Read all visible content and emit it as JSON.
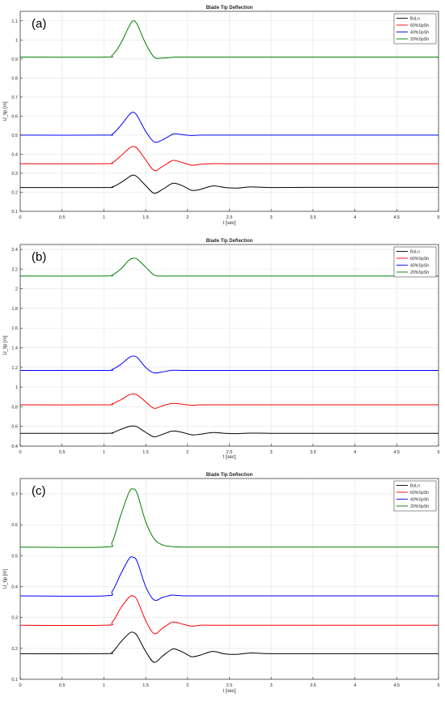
{
  "figure": {
    "panels": [
      {
        "panel_label": "(a)",
        "chart_data": {
          "type": "line",
          "title": "Blade Tip Deflection",
          "xlabel": "t [sec]",
          "ylabel": "U_tip [m]",
          "xlim": [
            0,
            5
          ],
          "ylim": [
            0.1,
            1.15
          ],
          "x_ticks": [
            0,
            0.5,
            1,
            1.5,
            2,
            2.5,
            3,
            3.5,
            4,
            4.5,
            5
          ],
          "y_ticks": [
            0.1,
            0.2,
            0.3,
            0.4,
            0.5,
            0.6,
            0.7,
            0.8,
            0.9,
            1.0,
            1.1
          ],
          "x_tick_labels": [
            "0",
            "0.5",
            "1",
            "1.5",
            "2",
            "2.5",
            "3",
            "3.5",
            "4",
            "4.5",
            "5"
          ],
          "y_tick_labels": [
            "0.1",
            "0.2",
            "0.3",
            "0.4",
            "0.5",
            "0.6",
            "0.7",
            "0.8",
            "0.9",
            "1",
            "1.1"
          ],
          "grid": true,
          "legend_placement": "top-right",
          "x": [
            0,
            1.0,
            1.1,
            1.2,
            1.3,
            1.35,
            1.4,
            1.5,
            1.6,
            1.7,
            1.8,
            1.85,
            1.95,
            2.05,
            2.15,
            2.3,
            2.45,
            2.6,
            2.75,
            3.0,
            3.5,
            5.0
          ],
          "series": [
            {
              "name": "BsLn",
              "color": "#000000",
              "values": [
                0.225,
                0.225,
                0.228,
                0.25,
                0.28,
                0.29,
                0.28,
                0.235,
                0.195,
                0.215,
                0.243,
                0.247,
                0.232,
                0.21,
                0.215,
                0.233,
                0.225,
                0.222,
                0.228,
                0.225,
                0.226,
                0.226
              ]
            },
            {
              "name": "60%SpSh",
              "color": "#ff0000",
              "values": [
                0.35,
                0.35,
                0.355,
                0.39,
                0.43,
                0.44,
                0.43,
                0.37,
                0.315,
                0.335,
                0.363,
                0.367,
                0.355,
                0.342,
                0.347,
                0.35,
                0.35,
                0.35,
                0.35,
                0.35,
                0.35,
                0.35
              ]
            },
            {
              "name": "40%SpSh",
              "color": "#0000ff",
              "values": [
                0.5,
                0.5,
                0.505,
                0.55,
                0.605,
                0.62,
                0.6,
                0.52,
                0.465,
                0.475,
                0.5,
                0.507,
                0.502,
                0.498,
                0.5,
                0.5,
                0.5,
                0.5,
                0.5,
                0.5,
                0.5,
                0.5
              ]
            },
            {
              "name": "20%SpSh",
              "color": "#008000",
              "values": [
                0.91,
                0.91,
                0.92,
                0.98,
                1.07,
                1.1,
                1.08,
                0.98,
                0.91,
                0.905,
                0.908,
                0.91,
                0.91,
                0.91,
                0.91,
                0.91,
                0.91,
                0.91,
                0.91,
                0.91,
                0.91,
                0.91
              ]
            }
          ]
        }
      },
      {
        "panel_label": "(b)",
        "chart_data": {
          "type": "line",
          "title": "Blade Tip Deflection",
          "xlabel": "t [sec]",
          "ylabel": "U_tip [m]",
          "xlim": [
            0,
            5
          ],
          "ylim": [
            0.4,
            2.45
          ],
          "x_ticks": [
            0,
            0.5,
            1,
            1.5,
            2,
            2.5,
            3,
            3.5,
            4,
            4.5,
            5
          ],
          "y_ticks": [
            0.4,
            0.6,
            0.8,
            1.0,
            1.2,
            1.4,
            1.6,
            1.8,
            2.0,
            2.2,
            2.4
          ],
          "x_tick_labels": [
            "0",
            "0.5",
            "1",
            "1.5",
            "2",
            "2.5",
            "3",
            "3.5",
            "4",
            "4.5",
            "5"
          ],
          "y_tick_labels": [
            "0.4",
            "0.6",
            "0.8",
            "1",
            "1.2",
            "1.4",
            "1.6",
            "1.8",
            "2",
            "2.2",
            "2.4"
          ],
          "grid": true,
          "legend_placement": "top-right",
          "x": [
            0,
            1.0,
            1.1,
            1.2,
            1.3,
            1.35,
            1.4,
            1.5,
            1.6,
            1.7,
            1.8,
            1.85,
            1.95,
            2.05,
            2.15,
            2.3,
            2.45,
            2.6,
            2.75,
            3.0,
            3.5,
            5.0
          ],
          "series": [
            {
              "name": "BsLn",
              "color": "#000000",
              "values": [
                0.53,
                0.53,
                0.535,
                0.57,
                0.6,
                0.605,
                0.595,
                0.54,
                0.495,
                0.52,
                0.55,
                0.553,
                0.537,
                0.515,
                0.52,
                0.538,
                0.53,
                0.527,
                0.532,
                0.53,
                0.53,
                0.53
              ]
            },
            {
              "name": "60%SpSh",
              "color": "#ff0000",
              "values": [
                0.82,
                0.82,
                0.83,
                0.87,
                0.92,
                0.93,
                0.92,
                0.85,
                0.785,
                0.81,
                0.832,
                0.834,
                0.825,
                0.815,
                0.82,
                0.82,
                0.82,
                0.82,
                0.82,
                0.82,
                0.82,
                0.82
              ]
            },
            {
              "name": "40%SpSh",
              "color": "#0000ff",
              "values": [
                1.17,
                1.17,
                1.18,
                1.23,
                1.3,
                1.315,
                1.3,
                1.2,
                1.145,
                1.155,
                1.17,
                1.172,
                1.17,
                1.17,
                1.17,
                1.17,
                1.17,
                1.17,
                1.17,
                1.17,
                1.17,
                1.17
              ]
            },
            {
              "name": "20%SpSh",
              "color": "#008000",
              "values": [
                2.13,
                2.13,
                2.14,
                2.2,
                2.29,
                2.31,
                2.3,
                2.22,
                2.14,
                2.13,
                2.13,
                2.13,
                2.13,
                2.13,
                2.13,
                2.13,
                2.13,
                2.13,
                2.13,
                2.13,
                2.13,
                2.13
              ]
            }
          ]
        }
      },
      {
        "panel_label": "(c)",
        "chart_data": {
          "type": "line",
          "title": "Blade Tip Deflection",
          "xlabel": "t [sec]",
          "ylabel": "U_tip [m]",
          "xlim": [
            0,
            5
          ],
          "ylim": [
            0.1,
            0.75
          ],
          "x_ticks": [
            0,
            0.5,
            1,
            1.5,
            2,
            2.5,
            3,
            3.5,
            4,
            4.5,
            5
          ],
          "y_ticks": [
            0.1,
            0.2,
            0.3,
            0.4,
            0.5,
            0.6,
            0.7
          ],
          "x_tick_labels": [
            "0",
            "0.5",
            "1",
            "1.5",
            "2",
            "2.5",
            "3",
            "3.5",
            "4",
            "4.5",
            "5"
          ],
          "y_tick_labels": [
            "0.1",
            "0.2",
            "0.3",
            "0.4",
            "0.5",
            "0.6",
            "0.7"
          ],
          "grid": true,
          "legend_placement": "top-right",
          "x": [
            0,
            1.0,
            1.1,
            1.2,
            1.3,
            1.35,
            1.4,
            1.5,
            1.6,
            1.7,
            1.8,
            1.85,
            1.95,
            2.05,
            2.15,
            2.3,
            2.45,
            2.6,
            2.75,
            3.0,
            3.5,
            5.0
          ],
          "series": [
            {
              "name": "BsLn",
              "color": "#000000",
              "values": [
                0.183,
                0.183,
                0.188,
                0.22,
                0.248,
                0.252,
                0.24,
                0.19,
                0.155,
                0.175,
                0.195,
                0.198,
                0.187,
                0.173,
                0.178,
                0.19,
                0.182,
                0.181,
                0.185,
                0.183,
                0.183,
                0.183
              ]
            },
            {
              "name": "60%SpSh",
              "color": "#ff0000",
              "values": [
                0.275,
                0.275,
                0.285,
                0.33,
                0.365,
                0.37,
                0.355,
                0.29,
                0.248,
                0.265,
                0.283,
                0.285,
                0.278,
                0.272,
                0.275,
                0.275,
                0.275,
                0.275,
                0.275,
                0.275,
                0.275,
                0.275
              ]
            },
            {
              "name": "40%SpSh",
              "color": "#0000ff",
              "values": [
                0.37,
                0.37,
                0.385,
                0.44,
                0.49,
                0.495,
                0.48,
                0.4,
                0.357,
                0.365,
                0.372,
                0.372,
                0.37,
                0.37,
                0.37,
                0.37,
                0.37,
                0.37,
                0.37,
                0.37,
                0.37,
                0.37
              ]
            },
            {
              "name": "20%SpSh",
              "color": "#008000",
              "values": [
                0.528,
                0.528,
                0.545,
                0.63,
                0.705,
                0.716,
                0.7,
                0.61,
                0.555,
                0.535,
                0.53,
                0.529,
                0.528,
                0.528,
                0.528,
                0.528,
                0.528,
                0.528,
                0.528,
                0.528,
                0.528,
                0.528
              ]
            }
          ]
        }
      }
    ]
  }
}
